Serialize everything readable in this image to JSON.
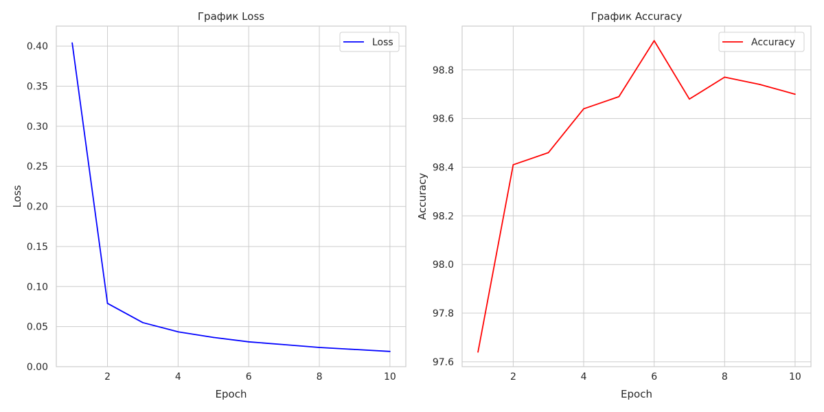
{
  "chart_data": [
    {
      "type": "line",
      "title": "График Loss",
      "xlabel": "Epoch",
      "ylabel": "Loss",
      "x": [
        1,
        2,
        3,
        4,
        5,
        6,
        7,
        8,
        9,
        10
      ],
      "series": [
        {
          "name": "Loss",
          "color": "#0000ff",
          "values": [
            0.404,
            0.079,
            0.055,
            0.0435,
            0.0365,
            0.031,
            0.0275,
            0.024,
            0.0215,
            0.019
          ]
        }
      ],
      "xlim": [
        0.55,
        10.45
      ],
      "ylim": [
        0.0,
        0.425
      ],
      "xticks": [
        2,
        4,
        6,
        8,
        10
      ],
      "yticks": [
        0.0,
        0.05,
        0.1,
        0.15,
        0.2,
        0.25,
        0.3,
        0.35,
        0.4
      ],
      "ytick_labels": [
        "0.00",
        "0.05",
        "0.10",
        "0.15",
        "0.20",
        "0.25",
        "0.30",
        "0.35",
        "0.40"
      ],
      "grid": true,
      "legend_position": "top-right"
    },
    {
      "type": "line",
      "title": "График Accuracy",
      "xlabel": "Epoch",
      "ylabel": "Accuracy",
      "x": [
        1,
        2,
        3,
        4,
        5,
        6,
        7,
        8,
        9,
        10
      ],
      "series": [
        {
          "name": "Accuracy",
          "color": "#ff0000",
          "values": [
            97.64,
            98.41,
            98.46,
            98.64,
            98.69,
            98.92,
            98.68,
            98.77,
            98.74,
            98.7
          ]
        }
      ],
      "xlim": [
        0.55,
        10.45
      ],
      "ylim": [
        97.58,
        98.98
      ],
      "xticks": [
        2,
        4,
        6,
        8,
        10
      ],
      "yticks": [
        97.6,
        97.8,
        98.0,
        98.2,
        98.4,
        98.6,
        98.8
      ],
      "ytick_labels": [
        "97.6",
        "97.8",
        "98.0",
        "98.2",
        "98.4",
        "98.6",
        "98.8"
      ],
      "grid": true,
      "legend_position": "top-right"
    }
  ]
}
